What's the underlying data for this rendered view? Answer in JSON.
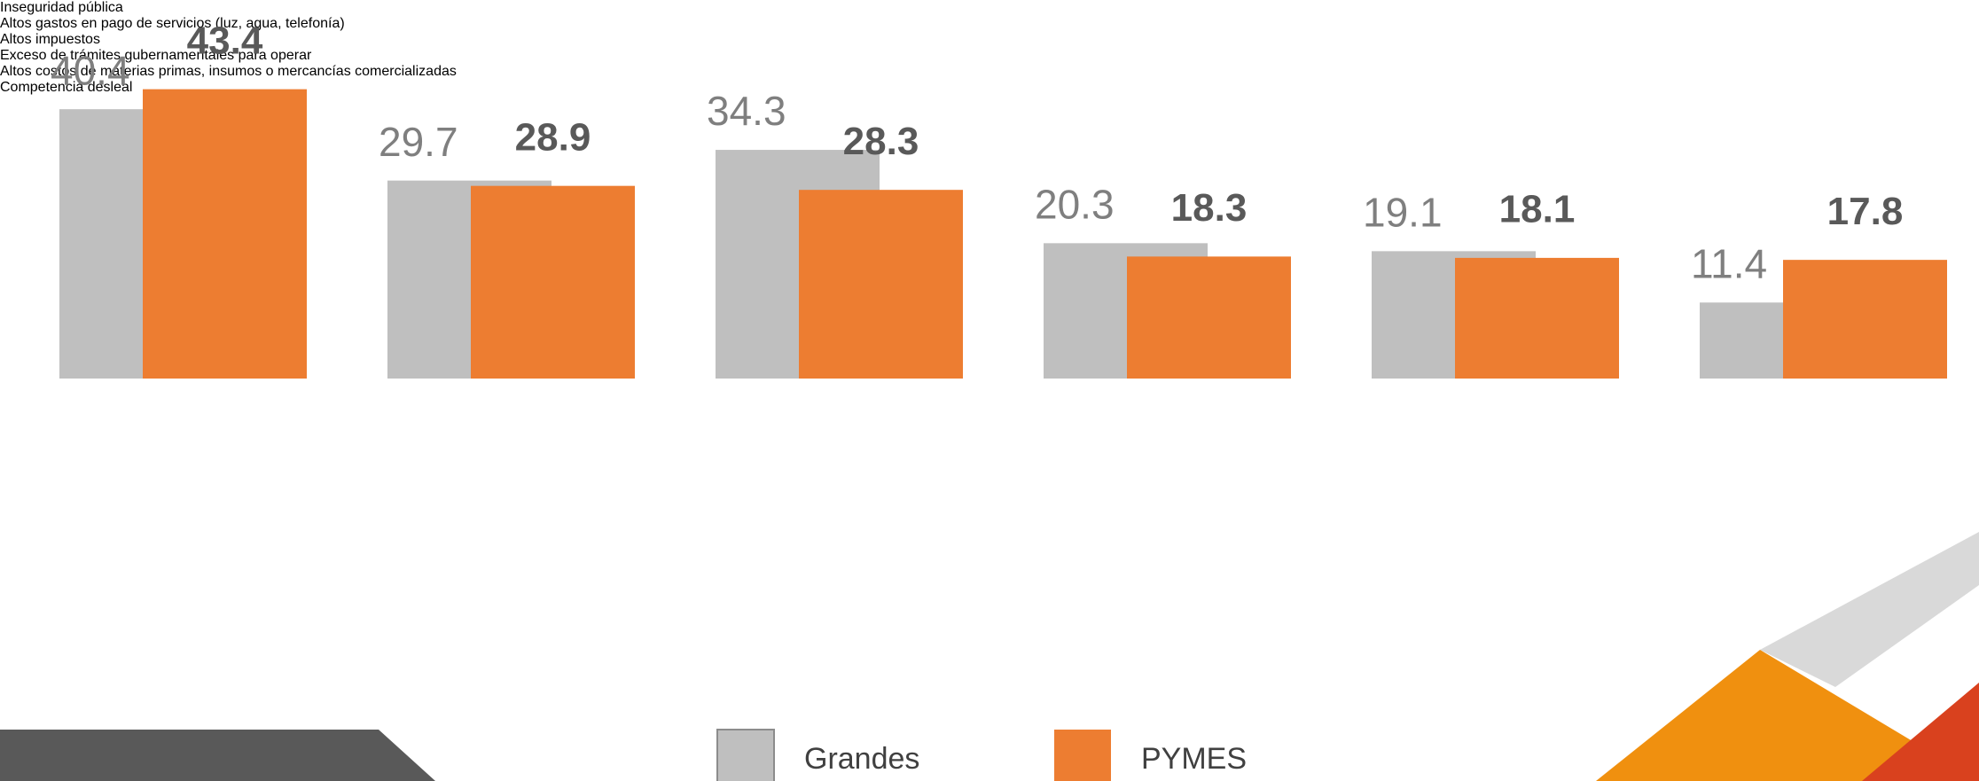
{
  "chart_data": {
    "type": "bar",
    "categories": [
      "Inseguridad pública",
      "Altos gastos\nen pago\nde servicios (luz,\nagua, telefonía)",
      "Altos\nimpuestos",
      "Exceso de trámites\ngubernamentales\npara operar",
      "Altos costos\nde materias\nprimas, insumos\no mercancías\ncomercializadas",
      "Competencia\ndesleal"
    ],
    "series": [
      {
        "name": "Grandes",
        "color": "#bfbfbf",
        "values": [
          40.4,
          29.7,
          34.3,
          20.3,
          19.1,
          11.4
        ]
      },
      {
        "name": "PYMES",
        "color": "#ed7d31",
        "values": [
          43.4,
          28.9,
          28.3,
          18.3,
          18.1,
          17.8
        ]
      }
    ],
    "ylim": [
      0,
      50
    ]
  }
}
